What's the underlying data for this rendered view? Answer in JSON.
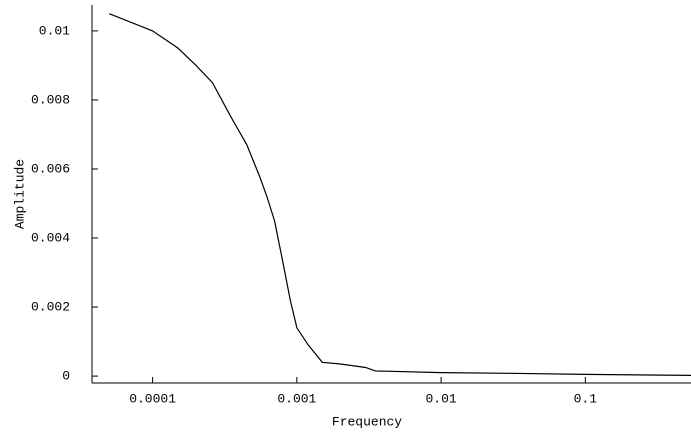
{
  "chart_data": {
    "type": "line",
    "x_label": "Frequency",
    "y_label": "Amplitude",
    "xscale": "log",
    "xlim": [
      3.8e-05,
      0.54
    ],
    "ylim": [
      -0.0002,
      0.01075
    ],
    "xticks": [
      0.0001,
      0.001,
      0.01,
      0.1
    ],
    "yticks": [
      0,
      0.002,
      0.004,
      0.006,
      0.008,
      0.01
    ],
    "series": [
      {
        "color": "#000000",
        "x": [
          5e-05,
          0.0001,
          0.00015,
          0.0002,
          0.00026,
          0.00035,
          0.00045,
          0.00055,
          0.00062,
          0.0007,
          0.0008,
          0.0009,
          0.001,
          0.0012,
          0.0015,
          0.002,
          0.003,
          0.0035,
          0.01,
          0.03,
          0.1,
          0.54
        ],
        "values": [
          0.0105,
          0.01,
          0.0095,
          0.009,
          0.0085,
          0.0075,
          0.0067,
          0.0058,
          0.0052,
          0.0045,
          0.0033,
          0.0022,
          0.0014,
          0.0009,
          0.0004,
          0.00035,
          0.00025,
          0.00015,
          0.0001,
          8e-05,
          5e-05,
          2e-05
        ]
      }
    ]
  }
}
